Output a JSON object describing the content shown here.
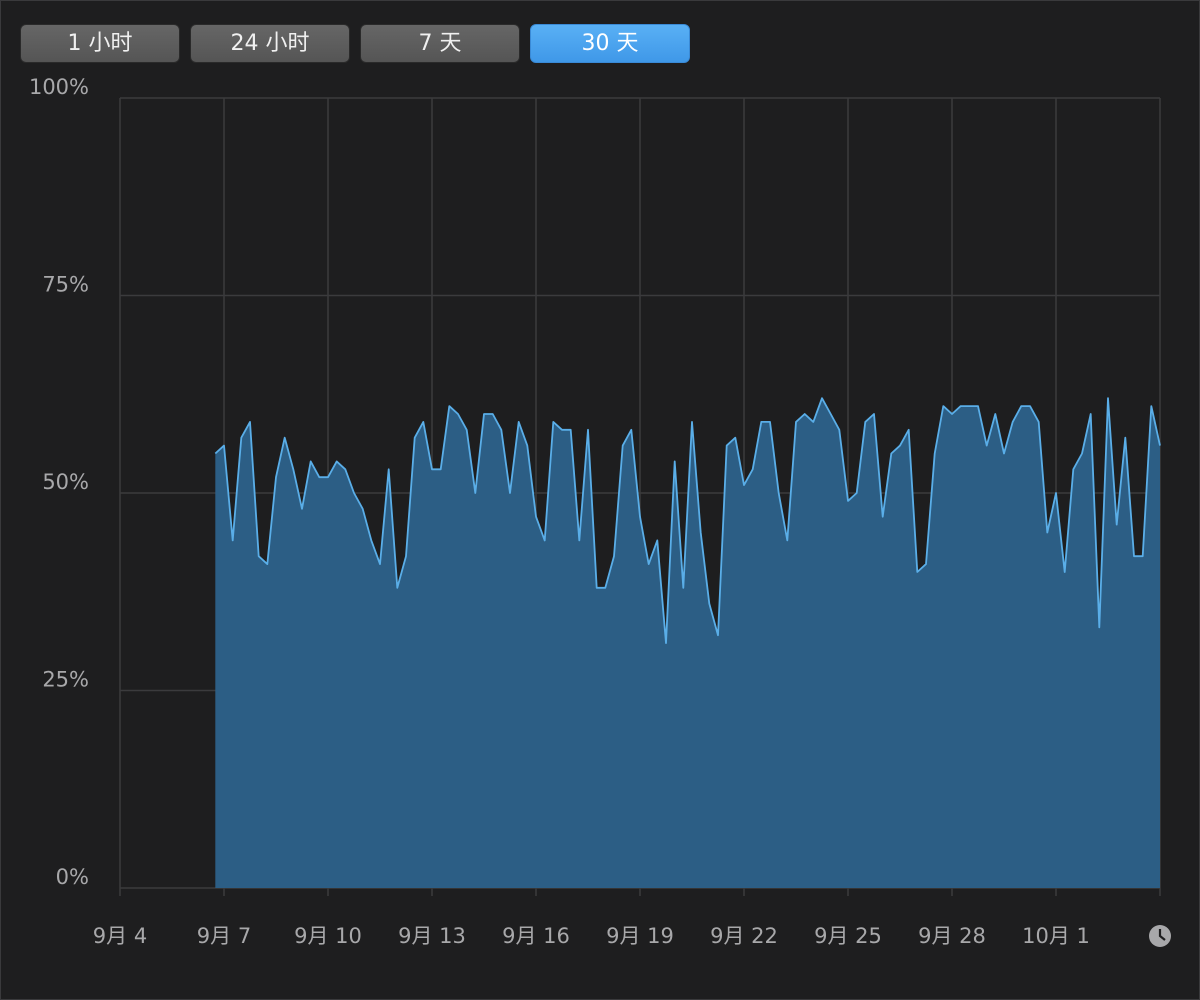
{
  "controls": {
    "buttons": [
      {
        "label": "1 小时",
        "active": false
      },
      {
        "label": "24 小时",
        "active": false
      },
      {
        "label": "7 天",
        "active": false
      },
      {
        "label": "30 天",
        "active": true
      }
    ]
  },
  "chart_data": {
    "type": "area",
    "color": "#5aaee8",
    "fill_color": "#2c5e85",
    "grid": true,
    "xlim": [
      0,
      30
    ],
    "ylim": [
      0,
      100
    ],
    "xticks": [
      {
        "value": 0,
        "label": "9月 4"
      },
      {
        "value": 3,
        "label": "9月 7"
      },
      {
        "value": 6,
        "label": "9月 10"
      },
      {
        "value": 9,
        "label": "9月 13"
      },
      {
        "value": 12,
        "label": "9月 16"
      },
      {
        "value": 15,
        "label": "9月 19"
      },
      {
        "value": 18,
        "label": "9月 22"
      },
      {
        "value": 21,
        "label": "9月 25"
      },
      {
        "value": 24,
        "label": "9月 28"
      },
      {
        "value": 27,
        "label": "10月 1"
      }
    ],
    "yticks": [
      {
        "value": 0,
        "label": "0%"
      },
      {
        "value": 25,
        "label": "25%"
      },
      {
        "value": 50,
        "label": "50%"
      },
      {
        "value": 75,
        "label": "75%"
      },
      {
        "value": 100,
        "label": "100%"
      }
    ],
    "x": [
      2.75,
      3,
      3.25,
      3.5,
      3.75,
      4,
      4.25,
      4.5,
      4.75,
      5,
      5.25,
      5.5,
      5.75,
      6,
      6.25,
      6.5,
      6.75,
      7,
      7.25,
      7.5,
      7.75,
      8,
      8.25,
      8.5,
      8.75,
      9,
      9.25,
      9.5,
      9.75,
      10,
      10.25,
      10.5,
      10.75,
      11,
      11.25,
      11.5,
      11.75,
      12,
      12.25,
      12.5,
      12.75,
      13,
      13.25,
      13.5,
      13.75,
      14,
      14.25,
      14.5,
      14.75,
      15,
      15.25,
      15.5,
      15.75,
      16,
      16.25,
      16.5,
      16.75,
      17,
      17.25,
      17.5,
      17.75,
      18,
      18.25,
      18.5,
      18.75,
      19,
      19.25,
      19.5,
      19.75,
      20,
      20.25,
      20.5,
      20.75,
      21,
      21.25,
      21.5,
      21.75,
      22,
      22.25,
      22.5,
      22.75,
      23,
      23.25,
      23.5,
      23.75,
      24,
      24.25,
      24.5,
      24.75,
      25,
      25.25,
      25.5,
      25.75,
      26,
      26.25,
      26.5,
      26.75,
      27,
      27.25,
      27.5,
      27.75,
      28,
      28.25,
      28.5,
      28.75,
      29,
      29.25,
      29.5,
      29.75,
      30
    ],
    "values": [
      55,
      56,
      44,
      57,
      59,
      42,
      41,
      52,
      57,
      53,
      48,
      54,
      52,
      52,
      54,
      53,
      50,
      48,
      44,
      41,
      53,
      38,
      42,
      57,
      59,
      53,
      53,
      61,
      60,
      58,
      50,
      60,
      60,
      58,
      50,
      59,
      56,
      47,
      44,
      59,
      58,
      58,
      44,
      58,
      38,
      38,
      42,
      56,
      58,
      47,
      41,
      44,
      31,
      54,
      38,
      59,
      45,
      36,
      32,
      56,
      57,
      51,
      53,
      59,
      59,
      50,
      44,
      59,
      60,
      59,
      62,
      60,
      58,
      49,
      50,
      59,
      60,
      47,
      55,
      56,
      58,
      40,
      41,
      55,
      61,
      60,
      61,
      61,
      61,
      56,
      60,
      55,
      59,
      61,
      61,
      59,
      45,
      50,
      40,
      53,
      55,
      60,
      33,
      62,
      46,
      57,
      42,
      42,
      61,
      56
    ]
  }
}
